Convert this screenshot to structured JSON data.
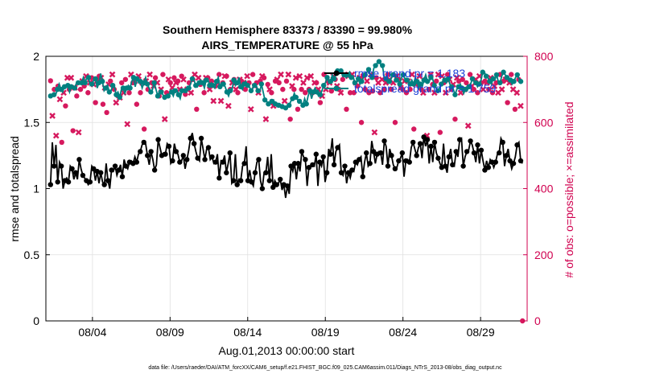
{
  "chart_data": {
    "type": "line",
    "title_line1": "Southern Hemisphere 83373 / 83390 = 99.980%",
    "title_line2": "AIRS_TEMPERATURE @ 55 hPa",
    "xlabel": "Aug.01,2013 00:00:00 start",
    "ylabel": "rmse and totalspread",
    "ylabel_right": "# of obs: o=possible; ×=assimilated",
    "footer": "data file: /Users/raeder/DAI/ATM_forcXX/CAM6_setup/f.e21.FHIST_BGC.f09_025.CAM6assim.011/Diags_NTrS_2013-08/obs_diag_output.nc",
    "x_ticks": [
      "08/04",
      "08/09",
      "08/14",
      "08/19",
      "08/24",
      "08/29"
    ],
    "x_tick_days": [
      4,
      9,
      14,
      19,
      24,
      29
    ],
    "xlim": [
      1,
      32
    ],
    "ylim": [
      0,
      2
    ],
    "y_ticks": [
      "0",
      "0.5",
      "1",
      "1.5",
      "2"
    ],
    "y_tick_values": [
      0,
      0.5,
      1,
      1.5,
      2
    ],
    "ylim_right": [
      0,
      800
    ],
    "y_ticks_right": [
      "0",
      "200",
      "400",
      "600",
      "800"
    ],
    "y_tick_values_right": [
      0,
      200,
      400,
      600,
      800
    ],
    "grid": true,
    "legend_position": "top-right",
    "colors": {
      "rmse": "#000000",
      "spread": "#008080",
      "obs": "#d6195e",
      "legend_text": "#1a3fd6",
      "right_axis": "#d0004f"
    },
    "series": [
      {
        "name": "rmse grand pr = 1.183",
        "values": [
          1.03,
          1.35,
          1.17,
          1.33,
          1.05,
          1.2,
          1.17,
          1.0,
          1.06,
          1.08,
          1.05,
          1.17,
          1.15,
          1.07,
          1.12,
          1.07,
          1.22,
          1.15,
          1.1,
          1.08,
          1.06,
          1.03,
          1.05,
          1.17,
          1.15,
          1.06,
          1.13,
          1.04,
          1.12,
          1.05,
          1.03,
          1.19,
          1.06,
          1.0,
          1.14,
          1.13,
          1.17,
          1.1,
          1.14,
          1.18,
          1.09,
          1.22,
          1.17,
          1.15,
          1.2,
          1.21,
          1.19,
          1.24,
          1.2,
          1.26,
          1.28,
          1.33,
          1.35,
          1.34,
          1.25,
          1.18,
          1.28,
          1.22,
          1.14,
          1.18,
          1.37,
          1.31,
          1.25,
          1.27,
          1.26,
          1.34,
          1.32,
          1.19,
          1.21,
          1.34,
          1.28,
          1.26,
          1.2,
          1.21,
          1.25,
          1.15,
          1.22,
          1.29,
          1.38,
          1.42,
          1.34,
          1.28,
          1.23,
          1.21,
          1.38,
          1.3,
          1.22,
          1.3,
          1.31,
          1.22,
          1.24,
          1.19,
          1.2,
          1.26,
          1.08,
          1.21,
          1.2,
          1.25,
          1.12,
          1.19,
          1.27,
          1.04,
          1.06,
          1.26,
          1.03,
          1.07,
          1.06,
          1.17,
          1.19,
          1.32,
          1.06,
          1.14,
          1.05,
          1.02,
          1.12,
          1.2,
          1.22,
          1.06,
          1.0,
          1.12,
          1.12,
          1.24,
          1.06,
          1.26,
          1.01,
          1.06,
          1.03,
          1.04,
          1.07,
          0.99,
          1.03,
          0.93,
          1.02,
          0.96,
          1.17,
          1.13,
          1.19,
          1.07,
          1.19,
          1.13,
          1.28,
          1.24,
          1.22,
          1.02,
          1.16,
          1.17,
          1.18,
          1.17,
          1.26,
          1.02,
          1.2,
          1.17,
          1.24,
          1.05,
          1.12,
          1.3,
          1.26,
          1.38,
          1.18,
          1.28,
          1.31,
          1.33,
          1.12,
          1.1,
          1.17,
          1.04,
          1.12,
          1.08,
          1.14,
          1.13,
          1.2,
          1.18,
          1.22,
          1.24,
          1.09,
          1.2,
          1.27,
          1.17,
          1.19,
          1.36,
          1.28,
          1.19,
          1.26,
          1.28,
          1.27,
          1.18,
          1.36,
          1.32,
          1.17,
          1.3,
          1.25,
          1.18,
          1.15,
          1.16,
          1.21,
          1.23,
          1.27,
          1.09,
          1.21,
          1.22,
          1.2,
          1.31,
          1.35,
          1.3,
          1.25,
          1.31,
          1.34,
          1.23,
          1.39,
          1.32,
          1.37,
          1.19,
          1.32,
          1.2,
          1.35,
          1.27,
          1.23,
          1.19,
          1.16,
          1.34,
          1.17,
          1.12,
          1.24,
          1.3,
          1.18,
          1.17,
          1.28,
          1.24,
          1.37,
          1.38,
          1.17,
          1.24,
          1.28,
          1.29,
          1.36,
          1.33,
          1.27,
          1.2,
          1.33,
          1.19,
          1.29,
          1.21,
          1.14,
          1.21,
          1.16,
          1.22,
          1.2,
          1.16,
          1.2,
          1.26,
          1.27,
          1.38,
          1.35,
          1.17,
          1.25,
          1.3,
          1.21,
          1.15,
          1.19,
          1.24,
          1.33,
          1.35,
          1.21,
          1.19
        ]
      },
      {
        "name": "totalspread grand pr = 1.759",
        "values": [
          1.7,
          1.7,
          1.71,
          1.71,
          1.75,
          1.79,
          1.75,
          1.73,
          1.77,
          1.77,
          1.78,
          1.73,
          1.77,
          1.77,
          1.76,
          1.8,
          1.8,
          1.79,
          1.8,
          1.84,
          1.8,
          1.84,
          1.84,
          1.78,
          1.79,
          1.82,
          1.83,
          1.76,
          1.8,
          1.87,
          1.81,
          1.74,
          1.76,
          1.78,
          1.73,
          1.74,
          1.78,
          1.77,
          1.71,
          1.73,
          1.69,
          1.75,
          1.76,
          1.72,
          1.76,
          1.78,
          1.76,
          1.81,
          1.84,
          1.77,
          1.83,
          1.8,
          1.81,
          1.76,
          1.8,
          1.84,
          1.79,
          1.76,
          1.73,
          1.75,
          1.8,
          1.75,
          1.7,
          1.74,
          1.73,
          1.71,
          1.69,
          1.69,
          1.7,
          1.72,
          1.73,
          1.7,
          1.74,
          1.75,
          1.71,
          1.68,
          1.74,
          1.75,
          1.74,
          1.77,
          1.76,
          1.79,
          1.83,
          1.82,
          1.78,
          1.77,
          1.8,
          1.82,
          1.8,
          1.76,
          1.82,
          1.83,
          1.78,
          1.8,
          1.78,
          1.76,
          1.81,
          1.84,
          1.77,
          1.8,
          1.79,
          1.77,
          1.73,
          1.7,
          1.74,
          1.75,
          1.82,
          1.78,
          1.8,
          1.84,
          1.77,
          1.75,
          1.79,
          1.81,
          1.78,
          1.77,
          1.74,
          1.76,
          1.78,
          1.78,
          1.74,
          1.73,
          1.79,
          1.73,
          1.67,
          1.66,
          1.64,
          1.65,
          1.66,
          1.67,
          1.64,
          1.62,
          1.63,
          1.62,
          1.62,
          1.62,
          1.61,
          1.62,
          1.63,
          1.66,
          1.68,
          1.72,
          1.69,
          1.67,
          1.66,
          1.65,
          1.63,
          1.68,
          1.64,
          1.7,
          1.74,
          1.68,
          1.73,
          1.76,
          1.73,
          1.7,
          1.71,
          1.74,
          1.78,
          1.8,
          1.84,
          1.8,
          1.81,
          1.86,
          1.83,
          1.86,
          1.89,
          1.87,
          1.89,
          1.85,
          1.86,
          1.84,
          1.86,
          1.88,
          1.84,
          1.85,
          1.8,
          1.8,
          1.83,
          1.79,
          1.81,
          1.84,
          1.86,
          1.88,
          1.9,
          1.86,
          1.84,
          1.91,
          1.93,
          1.95,
          1.96,
          1.94,
          1.93,
          1.84,
          1.83,
          1.8,
          1.81,
          1.83,
          1.86,
          1.87,
          1.82,
          1.83,
          1.79,
          1.84,
          1.86,
          1.83,
          1.82,
          1.83,
          1.79,
          1.82,
          1.79,
          1.84,
          1.81,
          1.76,
          1.79,
          1.77,
          1.82,
          1.86,
          1.81,
          1.81,
          1.84,
          1.83,
          1.78,
          1.76,
          1.74,
          1.76,
          1.79,
          1.81,
          1.82,
          1.8,
          1.83,
          1.79,
          1.77,
          1.75,
          1.71,
          1.75,
          1.77,
          1.79,
          1.76,
          1.72,
          1.75,
          1.74,
          1.77,
          1.79,
          1.83,
          1.81,
          1.8,
          1.77,
          1.79,
          1.82,
          1.88,
          1.88,
          1.85,
          1.84,
          1.81,
          1.79,
          1.83,
          1.82,
          1.86,
          1.81,
          1.8,
          1.85,
          1.88,
          1.86,
          1.84,
          1.83,
          1.82,
          1.79,
          1.81,
          1.84,
          1.86,
          1.83,
          1.81,
          1.8
        ]
      },
      {
        "name": "obs",
        "values": [
          726,
          620,
          700,
          560,
          710,
          670,
          540,
          690,
          650,
          735,
          700,
          735,
          575,
          705,
          680,
          570,
          700,
          725,
          710,
          740,
          690,
          720,
          735,
          715,
          660,
          730,
          740,
          735,
          655,
          705,
          630,
          715,
          725,
          745,
          700,
          660,
          680,
          675,
          720,
          690,
          730,
          595,
          690,
          745,
          720,
          725,
          655,
          740,
          690,
          720,
          580,
          725,
          700,
          745,
          720,
          710,
          735,
          720,
          680,
          700,
          745,
          610,
          690,
          730,
          720,
          705,
          735,
          720,
          725,
          700,
          740,
          730,
          685,
          700,
          720,
          690,
          730,
          745,
          640,
          735,
          715,
          720,
          690,
          735,
          735,
          700,
          725,
          665,
          710,
          720,
          745,
          665,
          720,
          740,
          740,
          650,
          700,
          720,
          730,
          700,
          690,
          730,
          725,
          720,
          700,
          740,
          720,
          640,
          745,
          710,
          720,
          690,
          725,
          740,
          735,
          610,
          715,
          700,
          690,
          650,
          725,
          730,
          720,
          745,
          700,
          665,
          725,
          745,
          610,
          710,
          700,
          735,
          640,
          740,
          700,
          720,
          690,
          735,
          700,
          740,
          690,
          720,
          720,
          700,
          660,
          680,
          745,
          700,
          725,
          720,
          695,
          740,
          730,
          710,
          700,
          690,
          730,
          745,
          640,
          740,
          690,
          745,
          690,
          720,
          710,
          735,
          600,
          740,
          700,
          725,
          690,
          745,
          695,
          570,
          735,
          720,
          690,
          730,
          700,
          720,
          745,
          730,
          700,
          720,
          600,
          740,
          730,
          705,
          700,
          725,
          690,
          725,
          700,
          745,
          580,
          715,
          720,
          740,
          700,
          690,
          730,
          560,
          700,
          745,
          715,
          690,
          725,
          745,
          570,
          740,
          720,
          690,
          745,
          730,
          700,
          715,
          610,
          735,
          725,
          690,
          730,
          700,
          720,
          590,
          745,
          710,
          700,
          730,
          690,
          740,
          720,
          700,
          725,
          720,
          700,
          735,
          690,
          710,
          720,
          690,
          745,
          700,
          725,
          730,
          660,
          720,
          745,
          700,
          640,
          690,
          730,
          650,
          0
        ]
      }
    ]
  }
}
